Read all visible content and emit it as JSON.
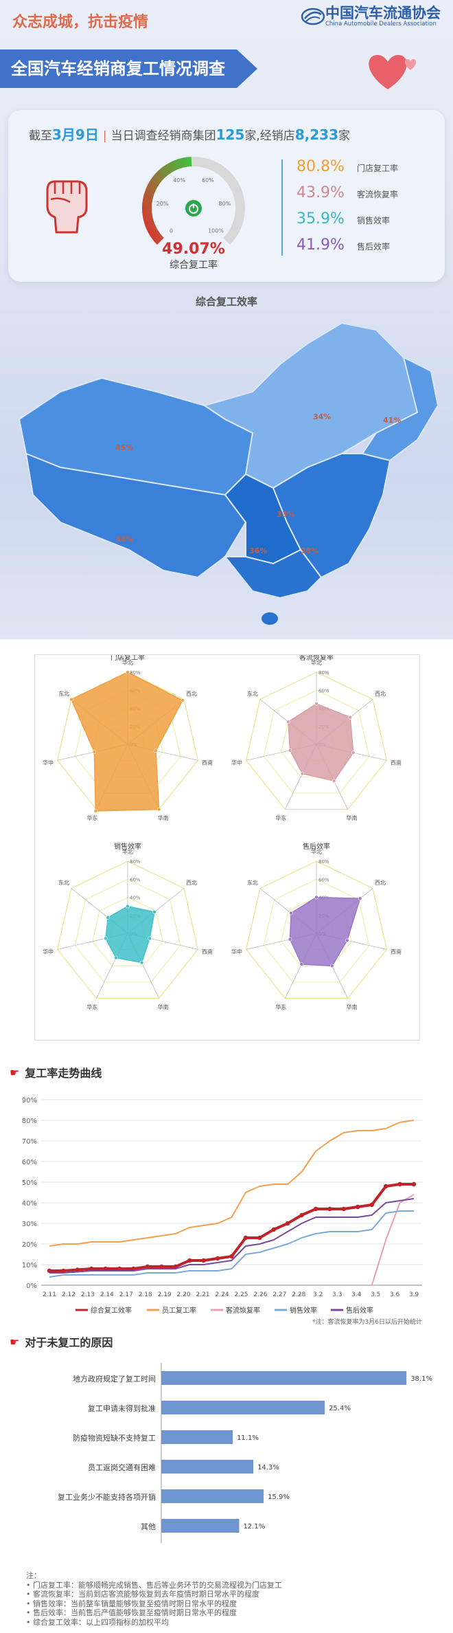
{
  "header": {
    "slogan": "众志成城，抗击疫情",
    "org_cn": "中国汽车流通协会",
    "org_en": "China Automobile Dealers Association",
    "report_title": "全国汽车经销商复工情况调查"
  },
  "summary": {
    "prefix": "截至",
    "date": "3月9日",
    "mid_text": "当日调查经销商集团",
    "groups": "125",
    "groups_unit": "家,经销店",
    "stores": "8,233",
    "stores_unit": "家",
    "gauge_ticks": [
      "0",
      "20%",
      "40%",
      "60%",
      "80%",
      "100%"
    ],
    "overall_value": "49.07%",
    "overall_gauge": 49.07,
    "overall_label": "综合复工率",
    "rates": [
      {
        "value": "80.8%",
        "label": "门店复工率",
        "color": "#f0a030"
      },
      {
        "value": "43.9%",
        "label": "客流恢复率",
        "color": "#d08890"
      },
      {
        "value": "35.9%",
        "label": "销售效率",
        "color": "#3ab8c8"
      },
      {
        "value": "41.9%",
        "label": "售后效率",
        "color": "#8a5ab8"
      }
    ]
  },
  "map": {
    "title": "综合复工效率",
    "regions": [
      "45%",
      "34%",
      "41%",
      "33%",
      "34%",
      "36%",
      "38%"
    ]
  },
  "chart_data": [
    {
      "type": "radar",
      "title": "门店复工率",
      "axes": [
        "华北",
        "西北",
        "西南",
        "华南",
        "华东",
        "华中",
        "东北"
      ],
      "ticks": [
        "0%",
        "20%",
        "40%",
        "60%",
        "80%"
      ],
      "rmax": 80,
      "values": [
        80,
        78,
        32,
        80,
        82,
        38,
        80
      ],
      "color": "#f0a040"
    },
    {
      "type": "radar",
      "title": "客流恢复率",
      "axes": [
        "华北",
        "西北",
        "西南",
        "华南",
        "华东",
        "华中",
        "东北"
      ],
      "ticks": [
        "0%",
        "20%",
        "40%",
        "60%",
        "80%"
      ],
      "rmax": 80,
      "values": [
        45,
        48,
        42,
        45,
        36,
        30,
        40
      ],
      "color": "#d8a0a8"
    },
    {
      "type": "radar",
      "title": "销售效率",
      "axes": [
        "华北",
        "西北",
        "西南",
        "华南",
        "华东",
        "华中",
        "东北"
      ],
      "ticks": [
        "0%",
        "20%",
        "40%",
        "60%",
        "80%"
      ],
      "rmax": 80,
      "values": [
        30,
        38,
        25,
        36,
        30,
        25,
        28
      ],
      "color": "#40c0c8"
    },
    {
      "type": "radar",
      "title": "售后效率",
      "axes": [
        "华北",
        "西北",
        "西南",
        "华南",
        "华东",
        "华中",
        "东北"
      ],
      "ticks": [
        "0%",
        "20%",
        "40%",
        "60%",
        "80%"
      ],
      "rmax": 80,
      "values": [
        40,
        62,
        35,
        40,
        38,
        30,
        36
      ],
      "color": "#9a78c8"
    },
    {
      "type": "line",
      "title": "复工率走势曲线",
      "x": [
        "2.11",
        "2.12",
        "2.13",
        "2.14",
        "2.15",
        "2.16",
        "2.17",
        "2.18",
        "2.19",
        "2.20",
        "2.21",
        "2.22",
        "2.23",
        "2.24",
        "2.25",
        "2.26",
        "2.27",
        "2.28",
        "3.1",
        "3.2",
        "3.3",
        "3.4",
        "3.5",
        "3.6",
        "3.7",
        "3.8",
        "3.9"
      ],
      "x_tick_labels": [
        "2.11",
        "2.12",
        "2.13",
        "2.14",
        "2.17",
        "2.18",
        "2.19",
        "2.20",
        "2.21",
        "2.24",
        "2.25",
        "2.26",
        "2.27",
        "2.28",
        "3.2",
        "3.3",
        "3.4",
        "3.5",
        "3.6",
        "3.9"
      ],
      "yticks": [
        "0%",
        "10%",
        "20%",
        "30%",
        "40%",
        "50%",
        "60%",
        "70%",
        "80%",
        "90%"
      ],
      "ylim": [
        0,
        90
      ],
      "series": [
        {
          "name": "综合复工效率",
          "color": "#c0242a",
          "width": 4,
          "marker": true,
          "values": [
            7,
            7,
            7.5,
            8,
            8,
            8,
            8,
            9,
            9,
            9,
            12,
            12,
            13,
            14,
            23,
            23,
            27,
            30,
            34,
            37,
            37,
            37,
            38,
            39,
            48,
            49,
            49
          ]
        },
        {
          "name": "员工复工率",
          "color": "#f0a050",
          "width": 2,
          "marker": false,
          "values": [
            19,
            20,
            20,
            21,
            21,
            21,
            22,
            23,
            24,
            25,
            28,
            29,
            30,
            33,
            45,
            48,
            49,
            49,
            55,
            65,
            70,
            74,
            75,
            75,
            76,
            79,
            80
          ]
        },
        {
          "name": "客流恢复率",
          "color": "#e8a0b0",
          "width": 2,
          "marker": false,
          "values": [
            null,
            null,
            null,
            null,
            null,
            null,
            null,
            null,
            null,
            null,
            null,
            null,
            null,
            null,
            null,
            null,
            null,
            null,
            null,
            null,
            null,
            null,
            null,
            0,
            22,
            40,
            44
          ]
        },
        {
          "name": "销售效率",
          "color": "#7aaad8",
          "width": 2,
          "marker": false,
          "values": [
            4,
            5,
            5,
            5,
            5,
            5,
            5,
            6,
            6,
            6,
            7,
            7,
            7,
            8,
            15,
            16,
            18,
            20,
            23,
            25,
            26,
            26,
            26,
            27,
            35,
            36,
            36
          ]
        },
        {
          "name": "售后效率",
          "color": "#7a4a9a",
          "width": 2,
          "marker": false,
          "values": [
            6,
            6,
            6.5,
            7,
            7,
            7,
            7,
            8,
            8,
            8,
            10,
            10,
            11,
            12,
            19,
            20,
            22,
            26,
            30,
            33,
            33,
            33,
            33,
            34,
            40,
            41,
            42
          ]
        }
      ],
      "note": "*注：客流恢复率为3月6日以后开始统计"
    },
    {
      "type": "bar",
      "orientation": "horizontal",
      "title": "对于未复工的原因",
      "categories": [
        "地方政府规定了复工时间",
        "复工申请未得到批准",
        "防疫物资短缺不支持复工",
        "员工返岗交通有困难",
        "复工业务少不能支持各项开销",
        "其他"
      ],
      "values": [
        38.1,
        25.4,
        11.1,
        14.3,
        15.9,
        12.1
      ],
      "value_labels": [
        "38.1%",
        "25.4%",
        "11.1%",
        "14.3%",
        "15.9%",
        "12.1%"
      ],
      "xlim": [
        0,
        40
      ],
      "color": "#6f95d0"
    }
  ],
  "notes": {
    "heading": "注：",
    "lines": [
      "• 门店复工率：能够顺畅完成销售、售后等业务环节的交易流程视为门店复工",
      "• 客流恢复率：当前到店客流能够恢复到去年疫情时期日常水平的程度",
      "• 销售效率：当前整车销量能够恢复至疫情时期日常水平的程度",
      "• 售后效率：当前售后产值能够恢复至疫情时期日常水平的程度",
      "• 综合复工效率：以上四项指标的加权平均"
    ]
  }
}
